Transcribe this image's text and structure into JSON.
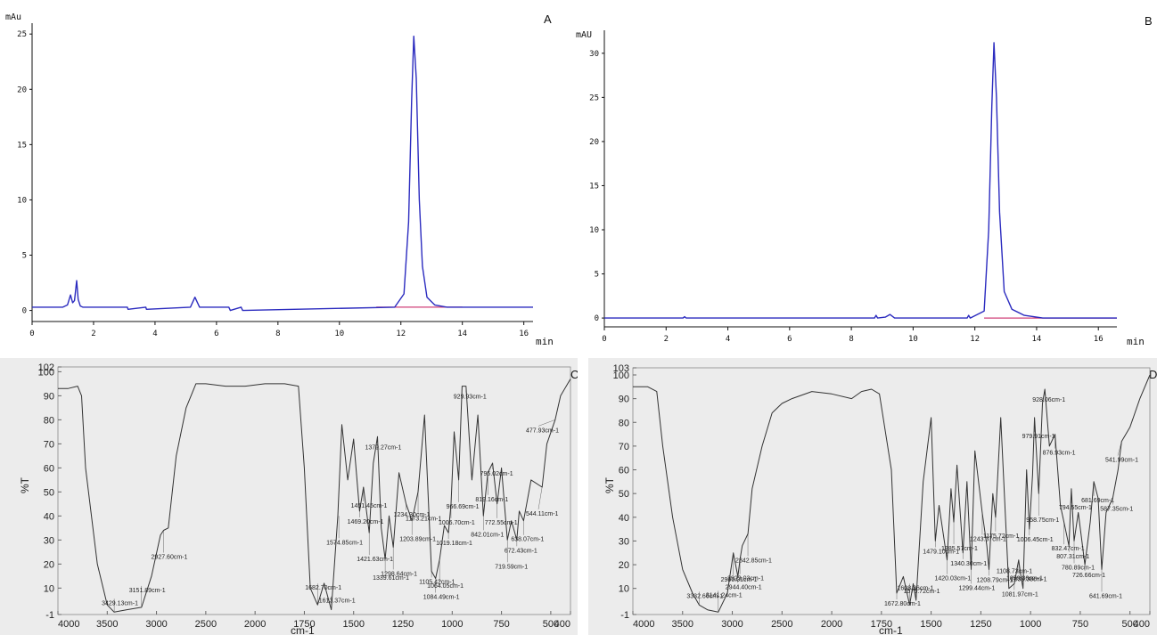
{
  "chart_data": [
    {
      "panel": "A",
      "type": "line",
      "ylabel": "mAu",
      "xlabel": "min",
      "xlim": [
        0,
        16.3
      ],
      "ylim": [
        -1,
        25.5
      ],
      "xticks": [
        0,
        2,
        4,
        6,
        8,
        10,
        12,
        14,
        16
      ],
      "yticks": [
        0,
        5,
        10,
        15,
        20,
        25
      ],
      "baseline": {
        "from": 11.2,
        "to": 14.0,
        "value": 0.3
      },
      "x": [
        0,
        1.0,
        1.15,
        1.25,
        1.32,
        1.38,
        1.45,
        1.5,
        1.57,
        1.65,
        3.1,
        3.12,
        3.7,
        3.72,
        5.15,
        5.3,
        5.45,
        6.4,
        6.45,
        6.8,
        6.85,
        11.8,
        12.1,
        12.25,
        12.35,
        12.42,
        12.5,
        12.6,
        12.7,
        12.85,
        13.1,
        13.5,
        16.3
      ],
      "y": [
        0.3,
        0.3,
        0.5,
        1.4,
        0.7,
        0.9,
        2.7,
        1.0,
        0.4,
        0.3,
        0.3,
        0.1,
        0.3,
        0.1,
        0.3,
        1.2,
        0.3,
        0.3,
        0.0,
        0.3,
        0.0,
        0.3,
        1.5,
        8.0,
        19.0,
        24.8,
        21.0,
        10.0,
        4.0,
        1.2,
        0.5,
        0.3,
        0.3
      ]
    },
    {
      "panel": "B",
      "type": "line",
      "ylabel": "mAU",
      "xlabel": "min",
      "xlim": [
        0,
        16.6
      ],
      "ylim": [
        -1,
        32
      ],
      "xticks": [
        0,
        2,
        4,
        6,
        8,
        10,
        12,
        14,
        16
      ],
      "yticks": [
        0,
        5,
        10,
        15,
        20,
        25,
        30
      ],
      "baseline": {
        "from": 12.3,
        "to": 16.6,
        "value": 0.0
      },
      "x": [
        0,
        2.55,
        2.6,
        2.65,
        8.75,
        8.8,
        8.85,
        9.1,
        9.25,
        9.4,
        11.75,
        11.8,
        11.85,
        12.3,
        12.45,
        12.55,
        12.62,
        12.7,
        12.8,
        12.95,
        13.2,
        13.6,
        14.2,
        16.6
      ],
      "y": [
        0,
        0,
        0.15,
        0,
        0,
        0.3,
        0,
        0.1,
        0.4,
        0,
        0,
        0.3,
        0,
        0.8,
        10.0,
        24.0,
        31.2,
        25.0,
        12.0,
        3.0,
        1.0,
        0.3,
        0,
        0
      ]
    },
    {
      "panel": "C",
      "type": "line",
      "ylabel": "%T",
      "xlabel": "cm-1",
      "xlim": [
        4000,
        400
      ],
      "ylim": [
        -1,
        102
      ],
      "xtick_labels": [
        "4000",
        "3500",
        "3000",
        "2500",
        "2000",
        "1750",
        "1500",
        "1250",
        "1000",
        "750",
        "500",
        "400"
      ],
      "ytick_labels": [
        "-1",
        "10",
        "20",
        "30",
        "40",
        "50",
        "60",
        "70",
        "80",
        "90",
        "100",
        "102"
      ],
      "x": [
        4000,
        3900,
        3800,
        3760,
        3720,
        3600,
        3500,
        3429,
        3300,
        3152,
        3050,
        2960,
        2928,
        2880,
        2800,
        2700,
        2600,
        2500,
        2300,
        2100,
        1950,
        1850,
        1780,
        1750,
        1720,
        1683,
        1650,
        1613,
        1580,
        1560,
        1530,
        1500,
        1470,
        1450,
        1421,
        1400,
        1379,
        1360,
        1340,
        1320,
        1299,
        1270,
        1234,
        1204,
        1173,
        1140,
        1105,
        1084,
        1064,
        1040,
        1019,
        1006,
        990,
        967,
        950,
        930,
        900,
        870,
        842,
        819,
        795,
        772,
        750,
        720,
        700,
        672,
        660,
        638,
        600,
        544,
        520,
        478,
        450,
        400
      ],
      "y": [
        93,
        93,
        94,
        90,
        60,
        20,
        3,
        0,
        1,
        2,
        15,
        32,
        34,
        35,
        65,
        85,
        95,
        95,
        94,
        94,
        95,
        95,
        94,
        60,
        10,
        3,
        12,
        1,
        40,
        78,
        55,
        72,
        42,
        52,
        33,
        62,
        73,
        35,
        22,
        40,
        27,
        58,
        45,
        38,
        50,
        82,
        17,
        14,
        22,
        36,
        33,
        45,
        75,
        55,
        94,
        94,
        55,
        82,
        40,
        58,
        62,
        45,
        60,
        30,
        38,
        30,
        42,
        38,
        55,
        52,
        70,
        80,
        90,
        97
      ]
    },
    {
      "panel": "D",
      "type": "line",
      "ylabel": "%T",
      "xlabel": "cm-1",
      "xlim": [
        4000,
        400
      ],
      "ylim": [
        -1,
        103
      ],
      "xtick_labels": [
        "4000",
        "3500",
        "3000",
        "2500",
        "2000",
        "1750",
        "1500",
        "1250",
        "1000",
        "750",
        "500",
        "400"
      ],
      "ytick_labels": [
        "-1",
        "10",
        "20",
        "30",
        "40",
        "50",
        "60",
        "70",
        "80",
        "90",
        "100",
        "103"
      ],
      "x": [
        4000,
        3850,
        3760,
        3700,
        3600,
        3500,
        3400,
        3333,
        3250,
        3141,
        3050,
        2990,
        2944,
        2923,
        2900,
        2843,
        2800,
        2700,
        2600,
        2500,
        2400,
        2200,
        2000,
        1900,
        1850,
        1800,
        1760,
        1700,
        1673,
        1640,
        1608,
        1590,
        1576,
        1540,
        1500,
        1479,
        1460,
        1420,
        1400,
        1386,
        1370,
        1340,
        1320,
        1299,
        1280,
        1243,
        1220,
        1209,
        1190,
        1176,
        1150,
        1109,
        1082,
        1060,
        1050,
        1038,
        1020,
        1006,
        990,
        980,
        959,
        940,
        928,
        905,
        877,
        850,
        832,
        807,
        795,
        781,
        760,
        727,
        700,
        682,
        660,
        642,
        620,
        587,
        560,
        542,
        500,
        450,
        400
      ],
      "y": [
        95,
        95,
        93,
        70,
        40,
        18,
        8,
        3,
        1,
        0,
        8,
        25,
        15,
        22,
        28,
        33,
        52,
        70,
        84,
        88,
        90,
        93,
        92,
        90,
        93,
        94,
        92,
        60,
        8,
        15,
        3,
        12,
        5,
        55,
        82,
        30,
        45,
        22,
        52,
        38,
        62,
        25,
        55,
        18,
        68,
        42,
        28,
        18,
        50,
        40,
        82,
        10,
        12,
        22,
        16,
        10,
        60,
        35,
        58,
        82,
        50,
        88,
        94,
        70,
        75,
        45,
        38,
        28,
        52,
        30,
        42,
        20,
        38,
        55,
        48,
        18,
        42,
        48,
        60,
        72,
        78,
        90,
        100
      ]
    }
  ],
  "panels": {
    "a": {
      "letter": "A",
      "yunit": "mAu",
      "xunit": "min",
      "xticks": [
        "0",
        "2",
        "4",
        "6",
        "8",
        "10",
        "12",
        "14",
        "16"
      ],
      "yticks": [
        "0",
        "5",
        "10",
        "15",
        "20",
        "25"
      ]
    },
    "b": {
      "letter": "B",
      "yunit": "mAU",
      "xunit": "min",
      "xticks": [
        "0",
        "2",
        "4",
        "6",
        "8",
        "10",
        "12",
        "14",
        "16"
      ],
      "yticks": [
        "0",
        "5",
        "10",
        "15",
        "20",
        "25",
        "30"
      ]
    },
    "c": {
      "letter": "C",
      "ylabel": "%T",
      "xlabel": "cm-1",
      "yticks": [
        "102",
        "100",
        "90",
        "80",
        "70",
        "60",
        "50",
        "40",
        "30",
        "20",
        "10",
        "-1"
      ],
      "xticks": [
        "4000",
        "3500",
        "3000",
        "2500",
        "2000",
        "1750",
        "1500",
        "1250",
        "1000",
        "750",
        "500",
        "400"
      ],
      "annotations": [
        {
          "label": "3429.13cm-1",
          "wn": 3429,
          "y": 0
        },
        {
          "label": "3151.89cm-1",
          "wn": 3152,
          "y": 2
        },
        {
          "label": "2927.60cm-1",
          "wn": 2928,
          "y": 34
        },
        {
          "label": "1682.70cm-1",
          "wn": 1683,
          "y": 3
        },
        {
          "label": "1613.37cm-1",
          "wn": 1613,
          "y": 1
        },
        {
          "label": "1574.85cm-1",
          "wn": 1575,
          "y": 40
        },
        {
          "label": "1469.20cm-1",
          "wn": 1469,
          "y": 42
        },
        {
          "label": "1451.45cm-1",
          "wn": 1451,
          "y": 52
        },
        {
          "label": "1421.63cm-1",
          "wn": 1421,
          "y": 33
        },
        {
          "label": "1379.27cm-1",
          "wn": 1379,
          "y": 73
        },
        {
          "label": "1339.61cm-1",
          "wn": 1340,
          "y": 22
        },
        {
          "label": "1298.64cm-1",
          "wn": 1299,
          "y": 27
        },
        {
          "label": "1234.30cm-1",
          "wn": 1234,
          "y": 45
        },
        {
          "label": "1203.89cm-1",
          "wn": 1204,
          "y": 38
        },
        {
          "label": "1173.21cm-1",
          "wn": 1173,
          "y": 50
        },
        {
          "label": "1105.42cm-1",
          "wn": 1105,
          "y": 17
        },
        {
          "label": "1084.49cm-1",
          "wn": 1084,
          "y": 14
        },
        {
          "label": "1064.05cm-1",
          "wn": 1064,
          "y": 22
        },
        {
          "label": "1019.18cm-1",
          "wn": 1019,
          "y": 33
        },
        {
          "label": "1006.70cm-1",
          "wn": 1006,
          "y": 45
        },
        {
          "label": "966.69cm-1",
          "wn": 967,
          "y": 55
        },
        {
          "label": "929.93cm-1",
          "wn": 930,
          "y": 94
        },
        {
          "label": "842.01cm-1",
          "wn": 842,
          "y": 40
        },
        {
          "label": "819.16cm-1",
          "wn": 819,
          "y": 58
        },
        {
          "label": "795.02cm-1",
          "wn": 795,
          "y": 62
        },
        {
          "label": "772.55cm-1",
          "wn": 772,
          "y": 45
        },
        {
          "label": "719.59cm-1",
          "wn": 720,
          "y": 30
        },
        {
          "label": "672.43cm-1",
          "wn": 672,
          "y": 30
        },
        {
          "label": "638.07cm-1",
          "wn": 638,
          "y": 38
        },
        {
          "label": "544.11cm-1",
          "wn": 544,
          "y": 52
        },
        {
          "label": "477.93cm-1",
          "wn": 478,
          "y": 80
        }
      ]
    },
    "d": {
      "letter": "D",
      "ylabel": "%T",
      "xlabel": "cm-1",
      "yticks": [
        "103",
        "100",
        "90",
        "80",
        "70",
        "60",
        "50",
        "40",
        "30",
        "20",
        "10",
        "-1"
      ],
      "xticks": [
        "4000",
        "3500",
        "3000",
        "2500",
        "2000",
        "1750",
        "1500",
        "1250",
        "1000",
        "750",
        "500",
        "400"
      ],
      "annotations": [
        {
          "label": "3332.66cm-1",
          "wn": 3333,
          "y": 3
        },
        {
          "label": "3141.24cm-1",
          "wn": 3141,
          "y": 0
        },
        {
          "label": "2990.01cm-1",
          "wn": 2990,
          "y": 25
        },
        {
          "label": "2944.40cm-1",
          "wn": 2944,
          "y": 15
        },
        {
          "label": "2923.03cm-1",
          "wn": 2923,
          "y": 22
        },
        {
          "label": "2842.85cm-1",
          "wn": 2843,
          "y": 33
        },
        {
          "label": "1672.80cm-1",
          "wn": 1673,
          "y": 8
        },
        {
          "label": "1608.36cm-1",
          "wn": 1608,
          "y": 3
        },
        {
          "label": "1575.72cm-1",
          "wn": 1576,
          "y": 5
        },
        {
          "label": "1479.10cm-1",
          "wn": 1479,
          "y": 30
        },
        {
          "label": "1420.03cm-1",
          "wn": 1420,
          "y": 22
        },
        {
          "label": "1385.57cm-1",
          "wn": 1386,
          "y": 38
        },
        {
          "label": "1340.30cm-1",
          "wn": 1340,
          "y": 25
        },
        {
          "label": "1299.44cm-1",
          "wn": 1299,
          "y": 18
        },
        {
          "label": "1243.37cm-1",
          "wn": 1243,
          "y": 42
        },
        {
          "label": "1208.79cm-1",
          "wn": 1209,
          "y": 18
        },
        {
          "label": "1175.72cm-1",
          "wn": 1176,
          "y": 40
        },
        {
          "label": "1108.73cm-1",
          "wn": 1109,
          "y": 10
        },
        {
          "label": "1081.97cm-1",
          "wn": 1082,
          "y": 12
        },
        {
          "label": "1059.36cm-1",
          "wn": 1059,
          "y": 22
        },
        {
          "label": "1038.38cm-1",
          "wn": 1038,
          "y": 10
        },
        {
          "label": "1006.45cm-1",
          "wn": 1006,
          "y": 35
        },
        {
          "label": "979.91cm-1",
          "wn": 980,
          "y": 82
        },
        {
          "label": "958.75cm-1",
          "wn": 959,
          "y": 50
        },
        {
          "label": "928.06cm-1",
          "wn": 928,
          "y": 94
        },
        {
          "label": "876.93cm-1",
          "wn": 877,
          "y": 75
        },
        {
          "label": "832.47cm-1",
          "wn": 832,
          "y": 38
        },
        {
          "label": "807.31cm-1",
          "wn": 807,
          "y": 28
        },
        {
          "label": "794.55cm-1",
          "wn": 795,
          "y": 52
        },
        {
          "label": "780.89cm-1",
          "wn": 781,
          "y": 30
        },
        {
          "label": "726.66cm-1",
          "wn": 727,
          "y": 20
        },
        {
          "label": "681.69cm-1",
          "wn": 682,
          "y": 55
        },
        {
          "label": "641.69cm-1",
          "wn": 642,
          "y": 18
        },
        {
          "label": "587.35cm-1",
          "wn": 587,
          "y": 48
        },
        {
          "label": "541.99cm-1",
          "wn": 542,
          "y": 72
        }
      ]
    }
  },
  "colors": {
    "hplc_trace": "#2b2bbf",
    "hplc_baseline": "#d0407a",
    "hplc_axis": "#111111",
    "ir_trace": "#333333",
    "ir_background": "#eeeeee",
    "ir_annotation": "#444444"
  }
}
